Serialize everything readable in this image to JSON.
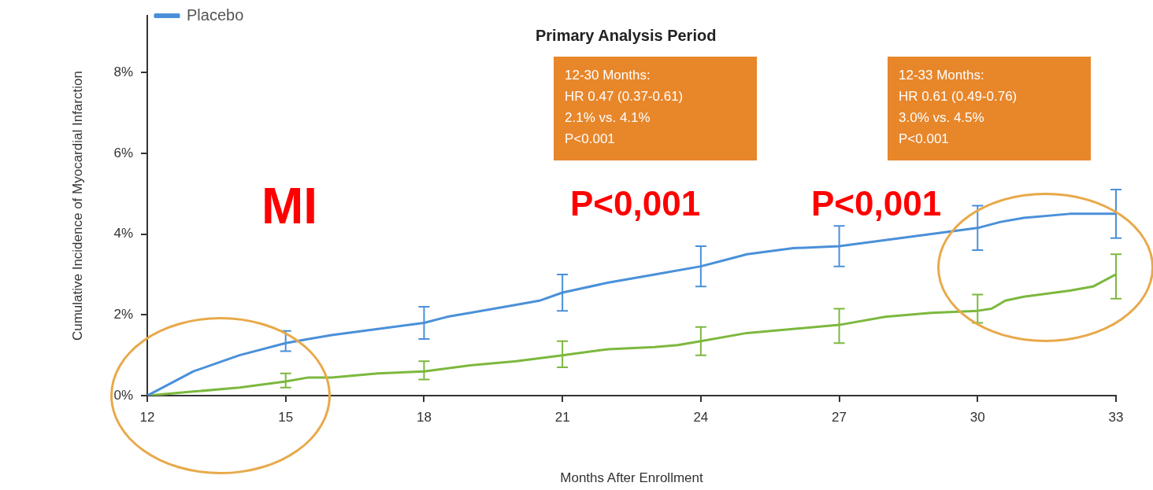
{
  "chart_data": {
    "type": "line",
    "xlabel": "Months After Enrollment",
    "ylabel": "Cumulative Incidence of Myocardial Infarction",
    "xlim": [
      12,
      33
    ],
    "xticks": [
      12,
      15,
      18,
      21,
      24,
      27,
      30,
      33
    ],
    "ylim": [
      0,
      9.4
    ],
    "yticks": [
      {
        "value": 0,
        "label": "0%"
      },
      {
        "value": 2,
        "label": "2%"
      },
      {
        "value": 4,
        "label": "4%"
      },
      {
        "value": 6,
        "label": "6%"
      },
      {
        "value": 8,
        "label": "8%"
      }
    ],
    "grid": false,
    "legend": "top left",
    "marker": "none",
    "line_style": "solid",
    "series": [
      {
        "name": "Placebo",
        "color": "#4a90d9",
        "x": [
          12,
          12.5,
          13,
          13.5,
          14,
          15,
          15.5,
          16,
          17,
          18,
          18.5,
          19,
          20,
          20.5,
          21,
          22,
          23,
          24,
          24.5,
          25,
          26,
          27,
          28,
          29,
          30,
          30.5,
          31,
          32,
          33
        ],
        "values": [
          0,
          0.3,
          0.6,
          0.8,
          1.0,
          1.3,
          1.4,
          1.5,
          1.65,
          1.8,
          1.95,
          2.05,
          2.25,
          2.35,
          2.55,
          2.8,
          3.0,
          3.2,
          3.35,
          3.5,
          3.65,
          3.7,
          3.85,
          4.0,
          4.15,
          4.3,
          4.4,
          4.5,
          4.5
        ],
        "errors": [
          null,
          null,
          null,
          null,
          null,
          [
            1.1,
            1.6
          ],
          null,
          null,
          null,
          [
            1.4,
            2.2
          ],
          null,
          null,
          null,
          null,
          [
            2.1,
            3.0
          ],
          null,
          null,
          [
            2.7,
            3.7
          ],
          null,
          null,
          null,
          [
            3.2,
            4.2
          ],
          null,
          null,
          [
            3.6,
            4.7
          ],
          null,
          null,
          null,
          [
            3.9,
            5.1
          ]
        ]
      },
      {
        "color": "#7cb83e",
        "x": [
          12,
          13,
          14,
          15,
          15.5,
          16,
          17,
          18,
          19,
          20,
          21,
          22,
          23,
          23.5,
          24,
          25,
          26,
          27,
          28,
          29,
          30,
          30.3,
          30.6,
          31,
          32,
          32.5,
          33
        ],
        "values": [
          0,
          0.1,
          0.2,
          0.35,
          0.45,
          0.45,
          0.55,
          0.6,
          0.75,
          0.85,
          1.0,
          1.15,
          1.2,
          1.25,
          1.35,
          1.55,
          1.65,
          1.75,
          1.95,
          2.05,
          2.1,
          2.15,
          2.35,
          2.45,
          2.6,
          2.7,
          3.0
        ],
        "errors": [
          null,
          null,
          null,
          [
            0.2,
            0.55
          ],
          null,
          null,
          null,
          [
            0.4,
            0.85
          ],
          null,
          null,
          [
            0.7,
            1.35
          ],
          null,
          null,
          null,
          [
            1.0,
            1.7
          ],
          null,
          null,
          [
            1.3,
            2.15
          ],
          null,
          null,
          [
            1.8,
            2.5
          ],
          null,
          null,
          null,
          null,
          null,
          [
            2.4,
            3.5
          ]
        ]
      }
    ],
    "annotations": [
      "Primary Analysis Period",
      "12-30 Months:\nHR 0.47 (0.37-0.61)\n2.1% vs. 4.1%\nP<0.001",
      "12-33 Months:\nHR 0.61 (0.49-0.76)\n3.0% vs. 4.5%\nP<0.001",
      "MI",
      "P<0,001",
      "P<0,001"
    ]
  }
}
